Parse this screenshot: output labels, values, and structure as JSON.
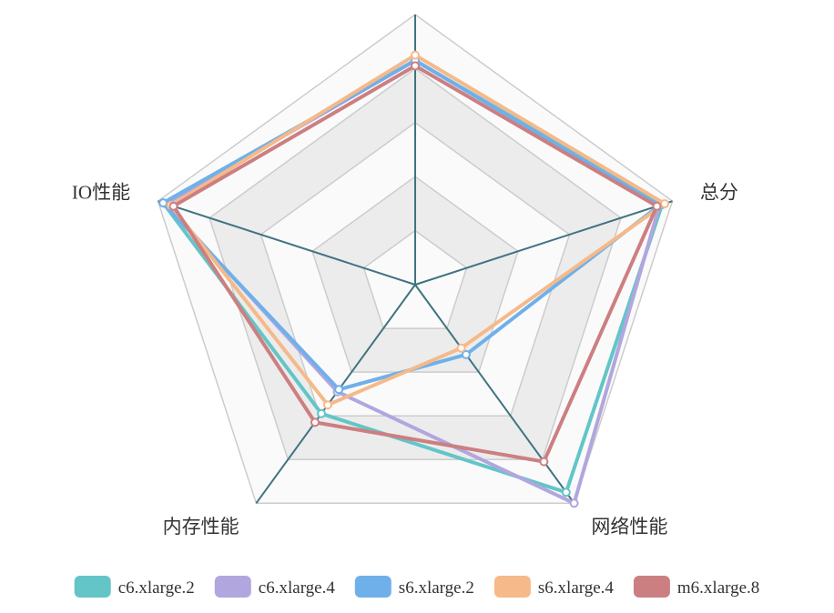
{
  "chart_data": {
    "type": "radar",
    "title": "",
    "indicators": [
      "",
      "总分",
      "网络性能",
      "内存性能",
      "IO性能"
    ],
    "max": 100,
    "levels": 5,
    "series": [
      {
        "name": "c6.xlarge.2",
        "color": "#63c5c7",
        "values": [
          83,
          96,
          95,
          59,
          98
        ]
      },
      {
        "name": "c6.xlarge.4",
        "color": "#b1a6de",
        "values": [
          83,
          95,
          100,
          49,
          97
        ]
      },
      {
        "name": "s6.xlarge.2",
        "color": "#6fb0ea",
        "values": [
          83,
          95,
          32,
          48,
          98
        ]
      },
      {
        "name": "s6.xlarge.4",
        "color": "#f5b98a",
        "values": [
          85,
          97,
          29,
          55,
          95
        ]
      },
      {
        "name": "m6.xlarge.8",
        "color": "#cc7f81",
        "values": [
          81,
          94,
          81,
          63,
          94
        ]
      }
    ],
    "legend_position": "bottom"
  }
}
